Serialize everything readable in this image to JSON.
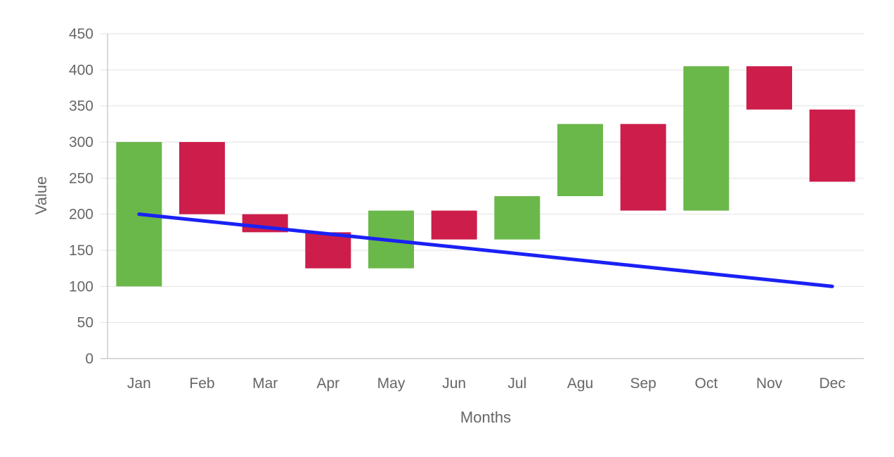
{
  "chart_data": {
    "type": "bar",
    "subtype": "floating-bar-waterfall-with-line",
    "xlabel": "Months",
    "ylabel": "Value",
    "ylim": [
      0,
      450
    ],
    "yticks": [
      0,
      50,
      100,
      150,
      200,
      250,
      300,
      350,
      400,
      450
    ],
    "grid": true,
    "legend": "none",
    "categories": [
      "Jan",
      "Feb",
      "Mar",
      "Apr",
      "May",
      "Jun",
      "Jul",
      "Agu",
      "Sep",
      "Oct",
      "Nov",
      "Dec"
    ],
    "bars": [
      {
        "low": 100,
        "high": 300,
        "direction": "up"
      },
      {
        "low": 200,
        "high": 300,
        "direction": "down"
      },
      {
        "low": 175,
        "high": 200,
        "direction": "down"
      },
      {
        "low": 125,
        "high": 175,
        "direction": "down"
      },
      {
        "low": 125,
        "high": 205,
        "direction": "up"
      },
      {
        "low": 165,
        "high": 205,
        "direction": "down"
      },
      {
        "low": 165,
        "high": 225,
        "direction": "up"
      },
      {
        "low": 225,
        "high": 325,
        "direction": "up"
      },
      {
        "low": 205,
        "high": 325,
        "direction": "down"
      },
      {
        "low": 205,
        "high": 405,
        "direction": "up"
      },
      {
        "low": 345,
        "high": 405,
        "direction": "down"
      },
      {
        "low": 245,
        "high": 345,
        "direction": "down"
      }
    ],
    "line": {
      "points": [
        {
          "x": "Jan",
          "y": 200
        },
        {
          "x": "Dec",
          "y": 100
        }
      ],
      "color": "#1a21f5"
    },
    "colors": {
      "up": "#6ab84a",
      "down": "#cd1d4b",
      "grid": "#e2e2e2",
      "axis": "#b5b5b5",
      "text": "#666666"
    }
  }
}
